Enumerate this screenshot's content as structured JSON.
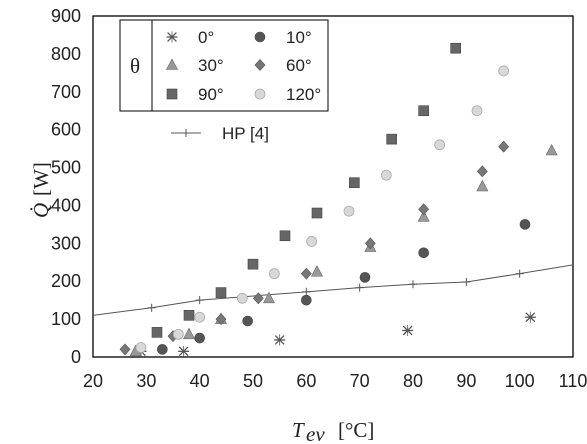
{
  "chart_data": {
    "type": "scatter",
    "title": "",
    "xlabel_symbol": "T",
    "xlabel_sub": "ev",
    "xlabel_unit": "[°C]",
    "ylabel_symbol": "Q̇",
    "ylabel_unit": "[W]",
    "xlim": [
      20,
      110
    ],
    "ylim": [
      0,
      900
    ],
    "xticks": [
      "20",
      "30",
      "40",
      "50",
      "60",
      "70",
      "80",
      "90",
      "100",
      "110"
    ],
    "yticks": [
      "0",
      "100",
      "200",
      "300",
      "400",
      "500",
      "600",
      "700",
      "800",
      "900"
    ],
    "legend_header": "θ",
    "legend_position": "top-left",
    "series": [
      {
        "name": "0°",
        "marker": "star",
        "color": "#555555",
        "points": [
          [
            29,
            15
          ],
          [
            37,
            15
          ],
          [
            55,
            45
          ],
          [
            79,
            70
          ],
          [
            102,
            105
          ]
        ]
      },
      {
        "name": "10°",
        "marker": "circle",
        "color": "#555555",
        "points": [
          [
            33,
            20
          ],
          [
            40,
            50
          ],
          [
            49,
            95
          ],
          [
            60,
            150
          ],
          [
            71,
            210
          ],
          [
            82,
            275
          ],
          [
            101,
            350
          ]
        ]
      },
      {
        "name": "30°",
        "marker": "triangle",
        "color": "#999999",
        "points": [
          [
            28,
            15
          ],
          [
            38,
            60
          ],
          [
            44,
            100
          ],
          [
            53,
            155
          ],
          [
            62,
            225
          ],
          [
            72,
            290
          ],
          [
            82,
            370
          ],
          [
            93,
            450
          ],
          [
            106,
            545
          ]
        ]
      },
      {
        "name": "60°",
        "marker": "diamond",
        "color": "#777777",
        "points": [
          [
            26,
            20
          ],
          [
            35,
            55
          ],
          [
            44,
            100
          ],
          [
            51,
            155
          ],
          [
            60,
            220
          ],
          [
            72,
            300
          ],
          [
            82,
            390
          ],
          [
            93,
            490
          ],
          [
            97,
            555
          ]
        ]
      },
      {
        "name": "90°",
        "marker": "square",
        "color": "#666666",
        "points": [
          [
            32,
            65
          ],
          [
            38,
            110
          ],
          [
            44,
            170
          ],
          [
            50,
            245
          ],
          [
            56,
            320
          ],
          [
            62,
            380
          ],
          [
            69,
            460
          ],
          [
            76,
            575
          ],
          [
            82,
            650
          ],
          [
            88,
            815
          ]
        ]
      },
      {
        "name": "120°",
        "marker": "circle-open",
        "color": "#d8d8d8",
        "points": [
          [
            29,
            25
          ],
          [
            36,
            60
          ],
          [
            40,
            105
          ],
          [
            48,
            155
          ],
          [
            54,
            220
          ],
          [
            61,
            305
          ],
          [
            68,
            385
          ],
          [
            75,
            480
          ],
          [
            85,
            560
          ],
          [
            92,
            650
          ],
          [
            97,
            755
          ]
        ]
      }
    ],
    "reference_line": {
      "name": "HP [4]",
      "points": [
        [
          20,
          110
        ],
        [
          31,
          130
        ],
        [
          40,
          150
        ],
        [
          60,
          172
        ],
        [
          70,
          183
        ],
        [
          80,
          192
        ],
        [
          90,
          198
        ],
        [
          100,
          220
        ],
        [
          110,
          243
        ]
      ]
    }
  }
}
